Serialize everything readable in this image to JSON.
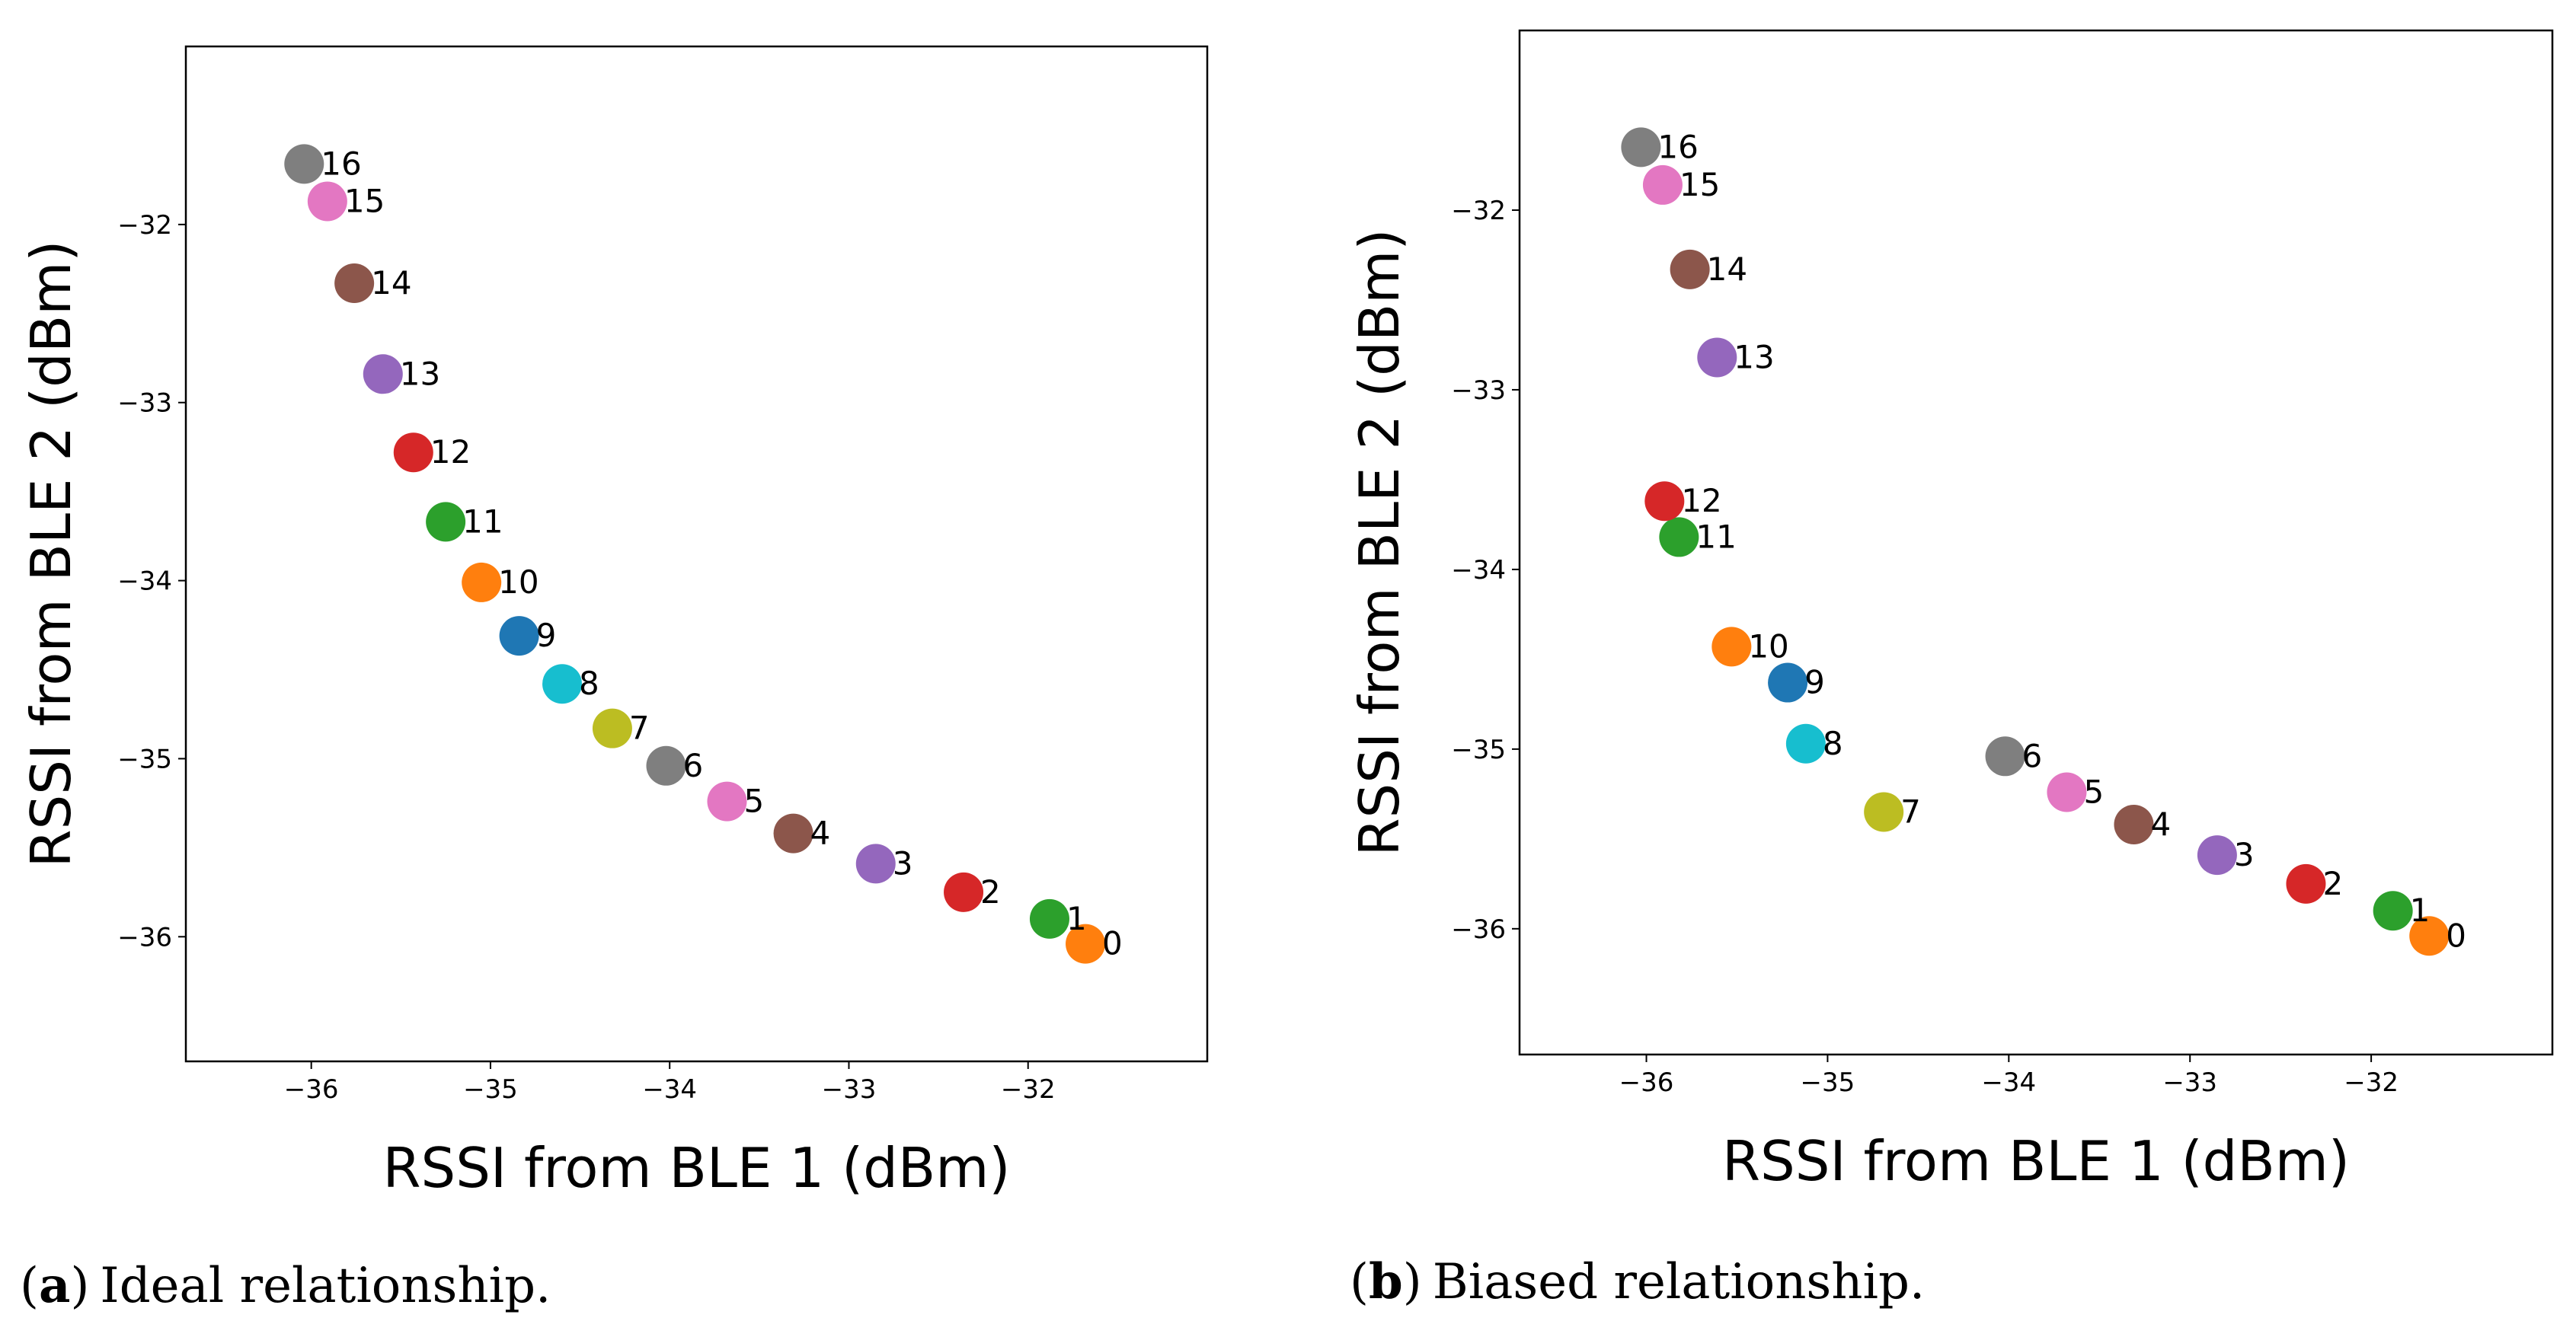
{
  "chart_data": [
    {
      "type": "scatter",
      "caption_letter": "a",
      "caption_text": "Ideal relationship.",
      "xlabel": "RSSI from BLE 1 (dBm)",
      "ylabel": "RSSI from BLE 2 (dBm)",
      "xlim": [
        -36.7,
        -31.0
      ],
      "ylim": [
        -36.7,
        -31.0
      ],
      "xticks": [
        -36,
        -35,
        -34,
        -33,
        -32
      ],
      "yticks": [
        -36,
        -35,
        -34,
        -33,
        -32
      ],
      "xtick_labels": [
        "−36",
        "−35",
        "−34",
        "−33",
        "−32"
      ],
      "ytick_labels": [
        "−36",
        "−35",
        "−34",
        "−33",
        "−32"
      ],
      "points": [
        {
          "label": "0",
          "x": -31.68,
          "y": -36.04,
          "color": "#ff7f0e"
        },
        {
          "label": "1",
          "x": -31.88,
          "y": -35.9,
          "color": "#2ca02c"
        },
        {
          "label": "2",
          "x": -32.36,
          "y": -35.75,
          "color": "#d62728"
        },
        {
          "label": "3",
          "x": -32.85,
          "y": -35.59,
          "color": "#9467bd"
        },
        {
          "label": "4",
          "x": -33.31,
          "y": -35.42,
          "color": "#8c564b"
        },
        {
          "label": "5",
          "x": -33.68,
          "y": -35.24,
          "color": "#e377c2"
        },
        {
          "label": "6",
          "x": -34.02,
          "y": -35.04,
          "color": "#7f7f7f"
        },
        {
          "label": "7",
          "x": -34.32,
          "y": -34.83,
          "color": "#bcbd22"
        },
        {
          "label": "8",
          "x": -34.6,
          "y": -34.58,
          "color": "#17becf"
        },
        {
          "label": "9",
          "x": -34.84,
          "y": -34.31,
          "color": "#1f77b4"
        },
        {
          "label": "10",
          "x": -35.05,
          "y": -34.01,
          "color": "#ff7f0e"
        },
        {
          "label": "11",
          "x": -35.25,
          "y": -33.67,
          "color": "#2ca02c"
        },
        {
          "label": "12",
          "x": -35.43,
          "y": -33.28,
          "color": "#d62728"
        },
        {
          "label": "13",
          "x": -35.6,
          "y": -32.84,
          "color": "#9467bd"
        },
        {
          "label": "14",
          "x": -35.76,
          "y": -32.33,
          "color": "#8c564b"
        },
        {
          "label": "15",
          "x": -35.91,
          "y": -31.87,
          "color": "#e377c2"
        },
        {
          "label": "16",
          "x": -36.04,
          "y": -31.66,
          "color": "#7f7f7f"
        }
      ]
    },
    {
      "type": "scatter",
      "caption_letter": "b",
      "caption_text": "Biased relationship.",
      "xlabel": "RSSI from BLE 1 (dBm)",
      "ylabel": "RSSI from BLE 2 (dBm)",
      "xlim": [
        -36.7,
        -31.0
      ],
      "ylim": [
        -36.7,
        -31.0
      ],
      "xticks": [
        -36,
        -35,
        -34,
        -33,
        -32
      ],
      "yticks": [
        -36,
        -35,
        -34,
        -33,
        -32
      ],
      "xtick_labels": [
        "−36",
        "−35",
        "−34",
        "−33",
        "−32"
      ],
      "ytick_labels": [
        "−36",
        "−35",
        "−34",
        "−33",
        "−32"
      ],
      "points": [
        {
          "label": "0",
          "x": -31.68,
          "y": -36.04,
          "color": "#ff7f0e"
        },
        {
          "label": "1",
          "x": -31.88,
          "y": -35.9,
          "color": "#2ca02c"
        },
        {
          "label": "2",
          "x": -32.36,
          "y": -35.75,
          "color": "#d62728"
        },
        {
          "label": "3",
          "x": -32.85,
          "y": -35.59,
          "color": "#9467bd"
        },
        {
          "label": "4",
          "x": -33.31,
          "y": -35.42,
          "color": "#8c564b"
        },
        {
          "label": "5",
          "x": -33.68,
          "y": -35.24,
          "color": "#e377c2"
        },
        {
          "label": "6",
          "x": -34.02,
          "y": -35.04,
          "color": "#7f7f7f"
        },
        {
          "label": "7",
          "x": -34.69,
          "y": -35.35,
          "color": "#bcbd22"
        },
        {
          "label": "8",
          "x": -35.12,
          "y": -34.97,
          "color": "#17becf"
        },
        {
          "label": "9",
          "x": -35.22,
          "y": -34.63,
          "color": "#1f77b4"
        },
        {
          "label": "10",
          "x": -35.53,
          "y": -34.43,
          "color": "#ff7f0e"
        },
        {
          "label": "11",
          "x": -35.82,
          "y": -33.82,
          "color": "#2ca02c"
        },
        {
          "label": "12",
          "x": -35.9,
          "y": -33.62,
          "color": "#d62728"
        },
        {
          "label": "13",
          "x": -35.61,
          "y": -32.82,
          "color": "#9467bd"
        },
        {
          "label": "14",
          "x": -35.76,
          "y": -32.33,
          "color": "#8c564b"
        },
        {
          "label": "15",
          "x": -35.91,
          "y": -31.86,
          "color": "#e377c2"
        },
        {
          "label": "16",
          "x": -36.03,
          "y": -31.65,
          "color": "#7f7f7f"
        }
      ]
    }
  ]
}
